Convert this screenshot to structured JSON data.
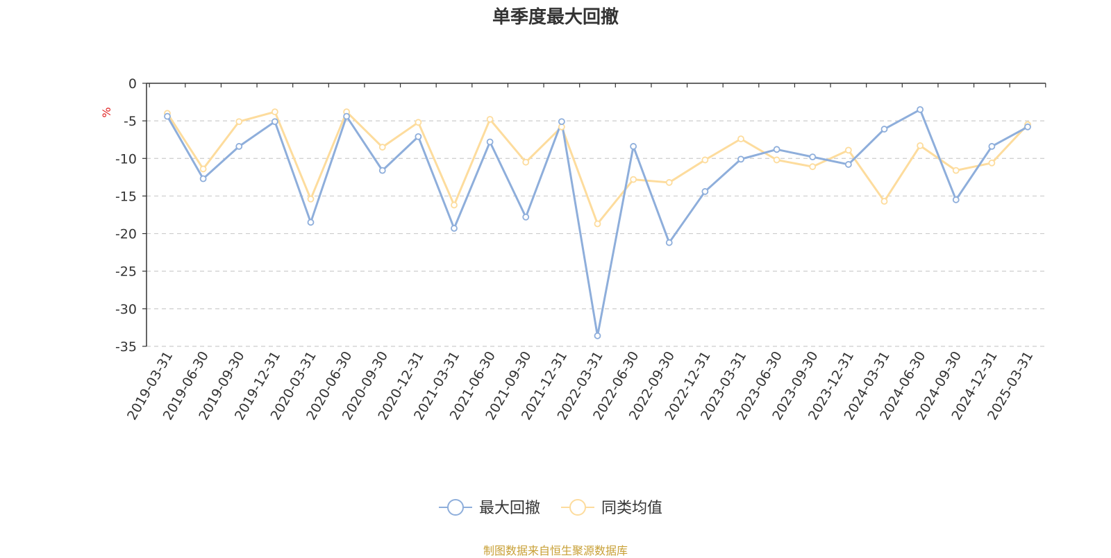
{
  "chart_data": {
    "type": "line",
    "title": "单季度最大回撤",
    "ylabel": "%",
    "ylim": [
      -35,
      0
    ],
    "yticks": [
      0,
      -5,
      -10,
      -15,
      -20,
      -25,
      -30,
      -35
    ],
    "grid": "horizontal dashed",
    "legend_position": "bottom-center",
    "x": [
      "2019-03-31",
      "2019-06-30",
      "2019-09-30",
      "2019-12-31",
      "2020-03-31",
      "2020-06-30",
      "2020-09-30",
      "2020-12-31",
      "2021-03-31",
      "2021-06-30",
      "2021-09-30",
      "2021-12-31",
      "2022-03-31",
      "2022-06-30",
      "2022-09-30",
      "2022-12-31",
      "2023-03-31",
      "2023-06-30",
      "2023-09-30",
      "2023-12-31",
      "2024-03-31",
      "2024-06-30",
      "2024-09-30",
      "2024-12-31",
      "2025-03-31"
    ],
    "series": [
      {
        "name": "最大回撤",
        "color": "#8eaedb",
        "values": [
          -4.4,
          -12.7,
          -8.4,
          -5.1,
          -18.5,
          -4.4,
          -11.6,
          -7.1,
          -19.3,
          -7.8,
          -17.8,
          -5.1,
          -33.6,
          -8.4,
          -21.2,
          -14.4,
          -10.1,
          -8.8,
          -9.8,
          -10.8,
          -6.1,
          -3.5,
          -15.5,
          -8.4,
          -5.8
        ],
        "marker": "circle"
      },
      {
        "name": "同类均值",
        "color": "#fddc9d",
        "values": [
          -4.0,
          -11.4,
          -5.1,
          -3.8,
          -15.4,
          -3.8,
          -8.5,
          -5.2,
          -16.2,
          -4.8,
          -10.5,
          -5.8,
          -18.7,
          -12.8,
          -13.2,
          -10.2,
          -7.4,
          -10.2,
          -11.1,
          -8.9,
          -15.7,
          -8.3,
          -11.6,
          -10.6,
          -5.5
        ]
      }
    ]
  },
  "source": "制图数据来自恒生聚源数据库"
}
